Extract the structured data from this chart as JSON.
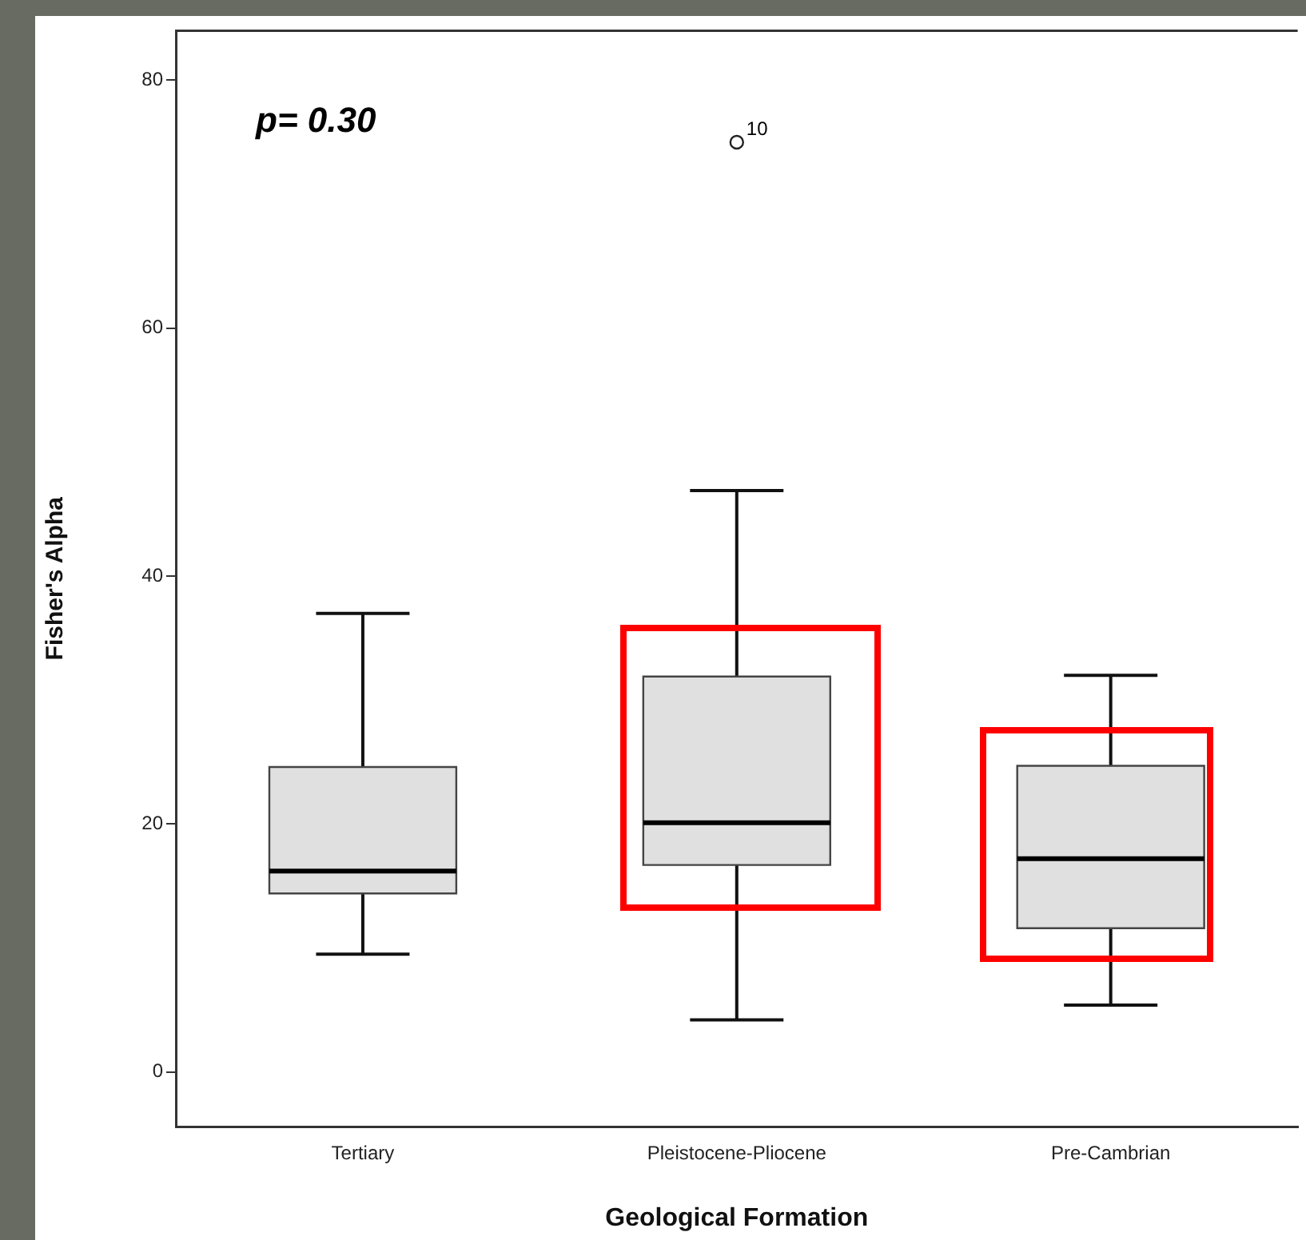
{
  "chart_data": {
    "type": "box",
    "xlabel": "Geological Formation",
    "ylabel": "Fisher's Alpha",
    "categories": [
      "Tertiary",
      "Pleistocene-Pliocene",
      "Pre-Cambrian"
    ],
    "boxes": [
      {
        "low": 9.5,
        "q1": 14.4,
        "median": 16.2,
        "q3": 24.6,
        "high": 37
      },
      {
        "low": 4.2,
        "q1": 16.7,
        "median": 20.1,
        "q3": 31.9,
        "high": 46.9,
        "outliers": [
          75
        ]
      },
      {
        "low": 5.4,
        "q1": 11.6,
        "median": 17.2,
        "q3": 24.7,
        "high": 32
      }
    ],
    "color": "#e0e0e0",
    "ylim": [
      -4.4,
      84
    ],
    "yticks": [
      0,
      20,
      40,
      60,
      80
    ],
    "grid": false,
    "legend": false,
    "annotations": [
      "p= 0.30",
      "10"
    ]
  }
}
